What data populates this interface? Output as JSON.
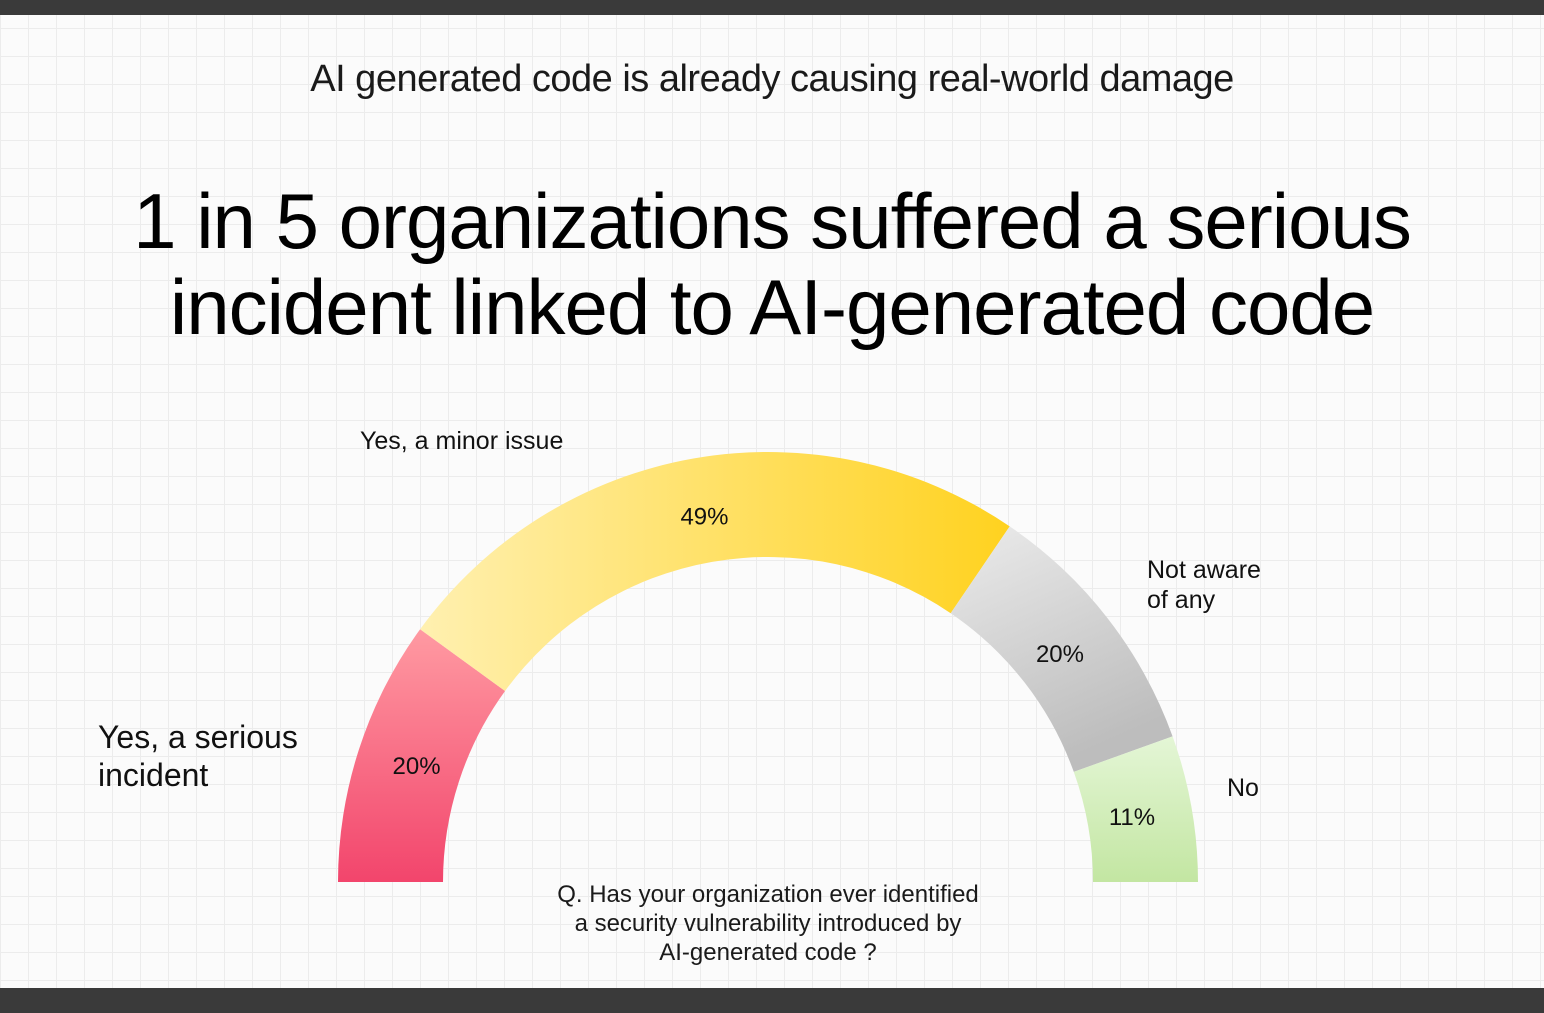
{
  "kicker": "AI generated code is already causing real-world damage",
  "headline": {
    "line1": "1 in 5 organizations suffered a serious",
    "line2": "incident linked to AI-generated code"
  },
  "question": {
    "line1": "Q. Has your organization ever identified",
    "line2": "a security vulnerability introduced by",
    "line3": "AI-generated code ?"
  },
  "chart_data": {
    "type": "pie",
    "variant": "half-donut",
    "categories": [
      "Yes, a serious incident",
      "Yes, a minor issue",
      "Not aware of any",
      "No"
    ],
    "values": [
      20,
      49,
      20,
      11
    ],
    "value_labels": [
      "20%",
      "49%",
      "20%",
      "11%"
    ],
    "label_lines": [
      [
        "Yes, a serious",
        "incident"
      ],
      [
        "Yes, a minor issue"
      ],
      [
        "Not aware",
        "of any"
      ],
      [
        "No"
      ]
    ],
    "colors": [
      [
        "#f2456c",
        "#ff9aa2"
      ],
      [
        "#fff0b0",
        "#ffd21f"
      ],
      [
        "#ebebeb",
        "#bdbdbd"
      ],
      [
        "#e4f6d6",
        "#c3e6a2"
      ]
    ]
  }
}
